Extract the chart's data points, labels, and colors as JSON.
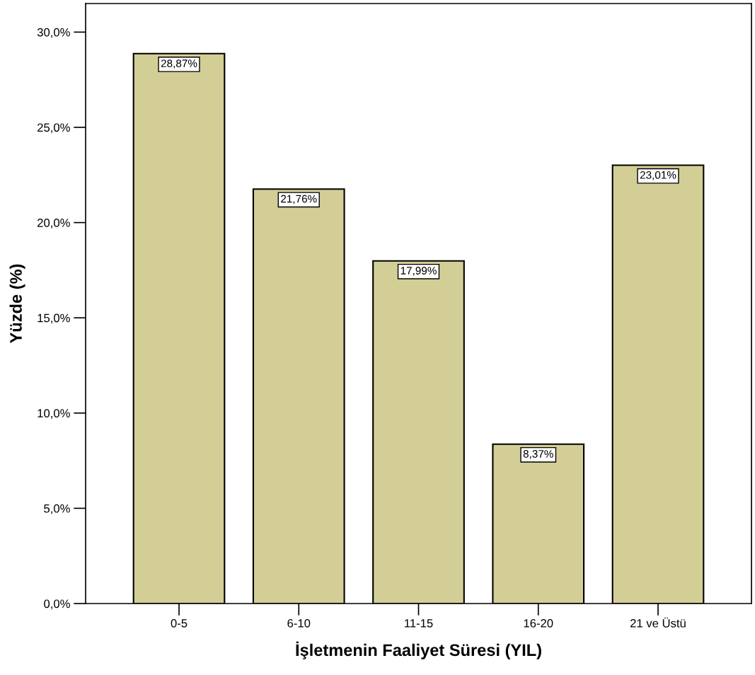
{
  "chart_data": {
    "type": "bar",
    "xlabel": "İşletmenin Faaliyet Süresi (YIL)",
    "ylabel": "Yüzde (%)",
    "categories": [
      "0-5",
      "6-10",
      "11-15",
      "16-20",
      "21 ve Üstü"
    ],
    "values": [
      28.87,
      21.76,
      17.99,
      8.37,
      23.01
    ],
    "value_labels": [
      "28,87%",
      "21,76%",
      "17,99%",
      "8,37%",
      "23,01%"
    ],
    "color": "#d3ce96",
    "ylim": [
      0,
      31.5
    ],
    "yticks": [
      {
        "value": 0,
        "label": "0,0%"
      },
      {
        "value": 5,
        "label": "5,0%"
      },
      {
        "value": 10,
        "label": "10,0%"
      },
      {
        "value": 15,
        "label": "15,0%"
      },
      {
        "value": 20,
        "label": "20,0%"
      },
      {
        "value": 25,
        "label": "25,0%"
      },
      {
        "value": 30,
        "label": "30,0%"
      }
    ],
    "grid": false,
    "legend": false
  }
}
